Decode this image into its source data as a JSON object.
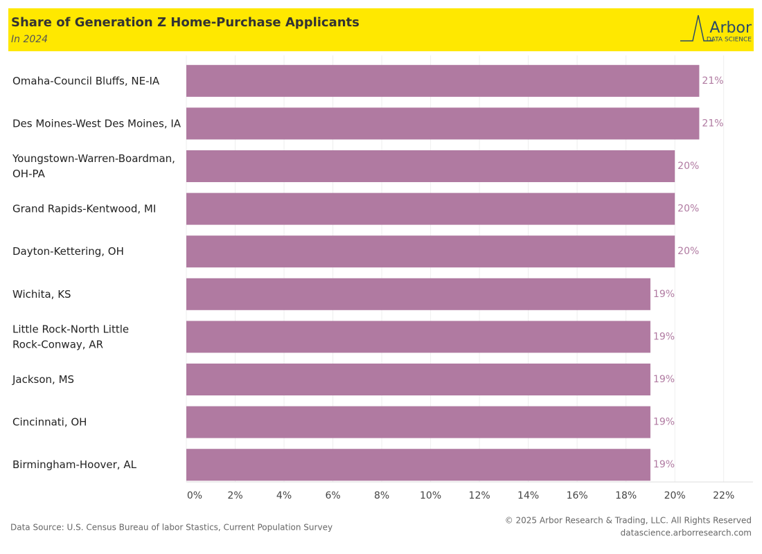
{
  "chart_data": {
    "type": "hbar",
    "title": "Share of Generation Z Home-Purchase Applicants",
    "subtitle": "In 2024",
    "logo": {
      "name": "Arbor",
      "tagline": "DATA SCIENCE"
    },
    "categories": [
      "Omaha-Council Bluffs, NE-IA",
      "Des Moines-West Des Moines, IA",
      "Youngstown-Warren-Boardman, OH-PA",
      "Grand Rapids-Kentwood, MI",
      "Dayton-Kettering, OH",
      "Wichita, KS",
      "Little Rock-North Little Rock-Conway, AR",
      "Jackson, MS",
      "Cincinnati, OH",
      "Birmingham-Hoover, AL"
    ],
    "values": [
      21,
      21,
      20,
      20,
      20,
      19,
      19,
      19,
      19,
      19
    ],
    "value_labels": [
      "21%",
      "21%",
      "20%",
      "20%",
      "20%",
      "19%",
      "19%",
      "19%",
      "19%",
      "19%"
    ],
    "color": "#b07aa1",
    "xlim": [
      0,
      23.2
    ],
    "xticks": [
      {
        "value": 0,
        "label": "0%"
      },
      {
        "value": 2,
        "label": "2%"
      },
      {
        "value": 4,
        "label": "4%"
      },
      {
        "value": 6,
        "label": "6%"
      },
      {
        "value": 8,
        "label": "8%"
      },
      {
        "value": 10,
        "label": "10%"
      },
      {
        "value": 12,
        "label": "12%"
      },
      {
        "value": 14,
        "label": "14%"
      },
      {
        "value": 16,
        "label": "16%"
      },
      {
        "value": 18,
        "label": "18%"
      },
      {
        "value": 20,
        "label": "20%"
      },
      {
        "value": 22,
        "label": "22%"
      }
    ],
    "grid": true,
    "source": "Data Source: U.S. Census Bureau of labor Stastics, Current Population Survey",
    "copyright": "© 2025 Arbor Research & Trading, LLC. All Rights Reserved",
    "website": "datascience.arborresearch.com"
  }
}
